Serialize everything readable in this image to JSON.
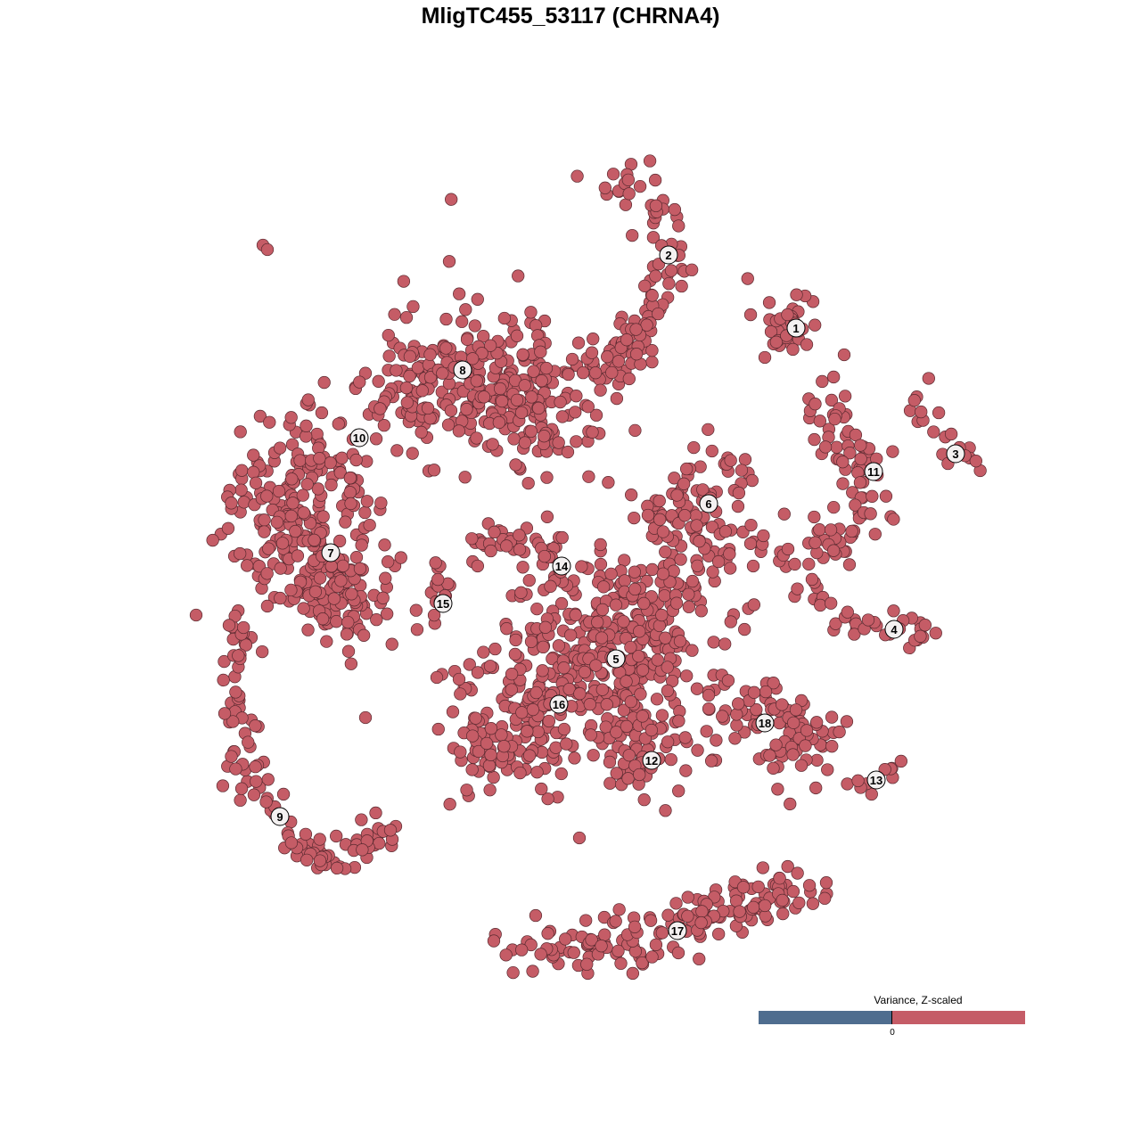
{
  "chart_data": {
    "type": "scatter",
    "title": "MligTC455_53117 (CHRNA4)",
    "xlabel": "",
    "ylabel": "",
    "grid": false,
    "point_color": "#c55c66",
    "point_stroke": "#5a2a30",
    "legend": {
      "title": "Variance, Z-scaled",
      "tick_label": "0",
      "colors": {
        "negative": "#4f6d8f",
        "positive": "#c55c67"
      },
      "placement": "bottom-right"
    },
    "clusters": [
      {
        "label": "1",
        "label_pos": [
          25.3,
          27.2
        ],
        "shape": "blob",
        "anchors": [
          [
            24.0,
            27.5
          ]
        ],
        "spread": 2.0,
        "n": 35
      },
      {
        "label": "2",
        "label_pos": [
          11.0,
          35.4
        ],
        "shape": "path",
        "anchors": [
          [
            5.0,
            44.0
          ],
          [
            10.0,
            41.0
          ],
          [
            11.5,
            35.0
          ],
          [
            10.0,
            30.0
          ],
          [
            7.0,
            26.0
          ],
          [
            6.0,
            23.5
          ],
          [
            2.5,
            22.5
          ]
        ],
        "spread": 1.6,
        "n": 110
      },
      {
        "label": "3",
        "label_pos": [
          43.2,
          13.1
        ],
        "shape": "path",
        "anchors": [
          [
            39.0,
            19.2
          ],
          [
            41.0,
            17.0
          ],
          [
            43.0,
            13.0
          ],
          [
            46.5,
            12.2
          ]
        ],
        "spread": 1.0,
        "n": 22
      },
      {
        "label": "4",
        "label_pos": [
          36.3,
          -6.6
        ],
        "shape": "path",
        "anchors": [
          [
            21.5,
            3.5
          ],
          [
            24.0,
            -1.0
          ],
          [
            30.0,
            -5.0
          ],
          [
            36.0,
            -7.0
          ],
          [
            41.5,
            -7.0
          ]
        ],
        "spread": 0.9,
        "n": 45
      },
      {
        "label": "5",
        "label_pos": [
          5.1,
          -9.9
        ],
        "shape": "blob",
        "anchors": [
          [
            5.0,
            -9.0
          ]
        ],
        "spread": 5.5,
        "n": 330
      },
      {
        "label": "6",
        "label_pos": [
          15.5,
          7.5
        ],
        "shape": "blob",
        "anchors": [
          [
            14.0,
            8.0
          ],
          [
            13.0,
            2.0
          ]
        ],
        "spread": 3.2,
        "n": 120
      },
      {
        "label": "7",
        "label_pos": [
          -26.9,
          2.0
        ],
        "shape": "blob",
        "anchors": [
          [
            -25.5,
            -3.0
          ]
        ],
        "spread": 3.0,
        "n": 90
      },
      {
        "label": "8",
        "label_pos": [
          -12.1,
          22.5
        ],
        "shape": "blob",
        "anchors": [
          [
            -16.0,
            21.0
          ],
          [
            -8.0,
            22.0
          ],
          [
            -4.0,
            18.0
          ]
        ],
        "spread": 4.2,
        "n": 330
      },
      {
        "label": "9",
        "label_pos": [
          -32.6,
          -27.6
        ],
        "shape": "path",
        "anchors": [
          [
            -37.0,
            -4.0
          ],
          [
            -37.2,
            -12.0
          ],
          [
            -37.0,
            -21.0
          ],
          [
            -35.0,
            -26.0
          ],
          [
            -30.0,
            -31.0
          ],
          [
            -25.0,
            -32.5
          ],
          [
            -21.0,
            -28.5
          ]
        ],
        "spread": 1.1,
        "n": 120
      },
      {
        "label": "10",
        "label_pos": [
          -23.7,
          14.9
        ],
        "shape": "blob",
        "anchors": [
          [
            -28.0,
            12.0
          ],
          [
            -32.0,
            6.0
          ],
          [
            -30.0,
            2.0
          ]
        ],
        "spread": 3.8,
        "n": 230
      },
      {
        "label": "11",
        "label_pos": [
          34.0,
          11.1
        ],
        "shape": "path",
        "anchors": [
          [
            29.0,
            20.0
          ],
          [
            30.5,
            15.0
          ],
          [
            33.0,
            11.0
          ],
          [
            32.5,
            6.0
          ],
          [
            30.0,
            3.0
          ],
          [
            27.0,
            2.0
          ]
        ],
        "spread": 1.5,
        "n": 90
      },
      {
        "label": "12",
        "label_pos": [
          9.1,
          -21.3
        ],
        "shape": "blob",
        "anchors": [
          [
            8.0,
            -20.0
          ]
        ],
        "spread": 2.8,
        "n": 60
      },
      {
        "label": "13",
        "label_pos": [
          34.3,
          -23.5
        ],
        "shape": "path",
        "anchors": [
          [
            31.5,
            -23.8
          ],
          [
            34.5,
            -24.0
          ],
          [
            37.0,
            -22.0
          ]
        ],
        "spread": 0.7,
        "n": 10
      },
      {
        "label": "14",
        "label_pos": [
          -1.0,
          0.5
        ],
        "shape": "path",
        "anchors": [
          [
            -11.0,
            2.8
          ],
          [
            -4.0,
            3.0
          ],
          [
            -1.0,
            0.0
          ]
        ],
        "spread": 1.2,
        "n": 45
      },
      {
        "label": "15",
        "label_pos": [
          -14.3,
          -3.7
        ],
        "shape": "path",
        "anchors": [
          [
            -18.0,
            1.5
          ],
          [
            -15.0,
            -1.0
          ],
          [
            -14.3,
            -3.7
          ],
          [
            -16.5,
            -7.0
          ]
        ],
        "spread": 0.8,
        "n": 18
      },
      {
        "label": "16",
        "label_pos": [
          -1.3,
          -15.0
        ],
        "shape": "blob",
        "anchors": [
          [
            -5.0,
            -14.0
          ],
          [
            -7.0,
            -20.0
          ]
        ],
        "spread": 3.8,
        "n": 160
      },
      {
        "label": "17",
        "label_pos": [
          12.0,
          -40.4
        ],
        "shape": "path",
        "anchors": [
          [
            -6.0,
            -42.5
          ],
          [
            4.0,
            -42.0
          ],
          [
            12.0,
            -40.0
          ],
          [
            21.0,
            -37.0
          ],
          [
            25.5,
            -37.0
          ]
        ],
        "spread": 1.8,
        "n": 170
      },
      {
        "label": "18",
        "label_pos": [
          21.8,
          -17.1
        ],
        "shape": "blob",
        "anchors": [
          [
            21.5,
            -16.0
          ],
          [
            26.0,
            -19.0
          ]
        ],
        "spread": 2.8,
        "n": 90
      }
    ],
    "outliers": [
      [
        -34.5,
        36.5
      ],
      [
        -34.0,
        36.0
      ],
      [
        -42.0,
        -5.0
      ],
      [
        -23.0,
        -16.5
      ],
      [
        -15.0,
        -12.0
      ],
      [
        -12.5,
        -12.2
      ],
      [
        30.7,
        24.2
      ],
      [
        1.0,
        -30.0
      ],
      [
        15.5,
        -14.0
      ],
      [
        20.5,
        0.5
      ]
    ]
  }
}
